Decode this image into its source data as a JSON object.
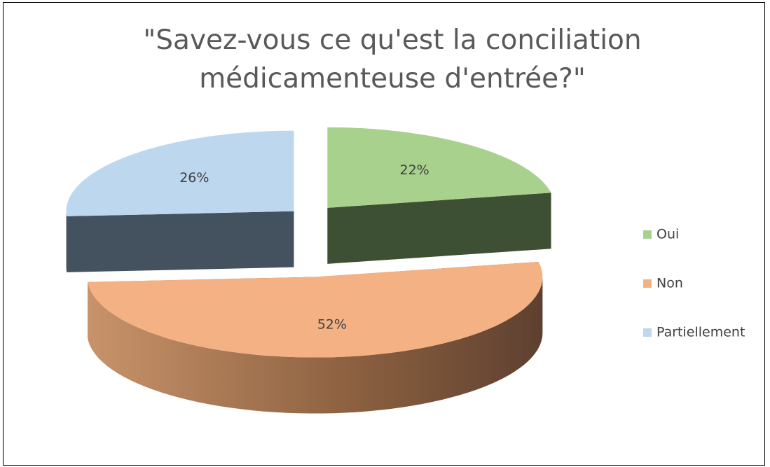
{
  "chart_data": {
    "type": "pie",
    "title": "\"Savez-vous ce qu'est la conciliation médicamenteuse d'entrée?\"",
    "categories": [
      "Oui",
      "Non",
      "Partiellement"
    ],
    "values": [
      22,
      52,
      26
    ],
    "value_labels": [
      "22%",
      "52%",
      "26%"
    ],
    "colors": [
      "#a9d18e",
      "#f4b183",
      "#bdd7ee"
    ],
    "legend": "right"
  }
}
